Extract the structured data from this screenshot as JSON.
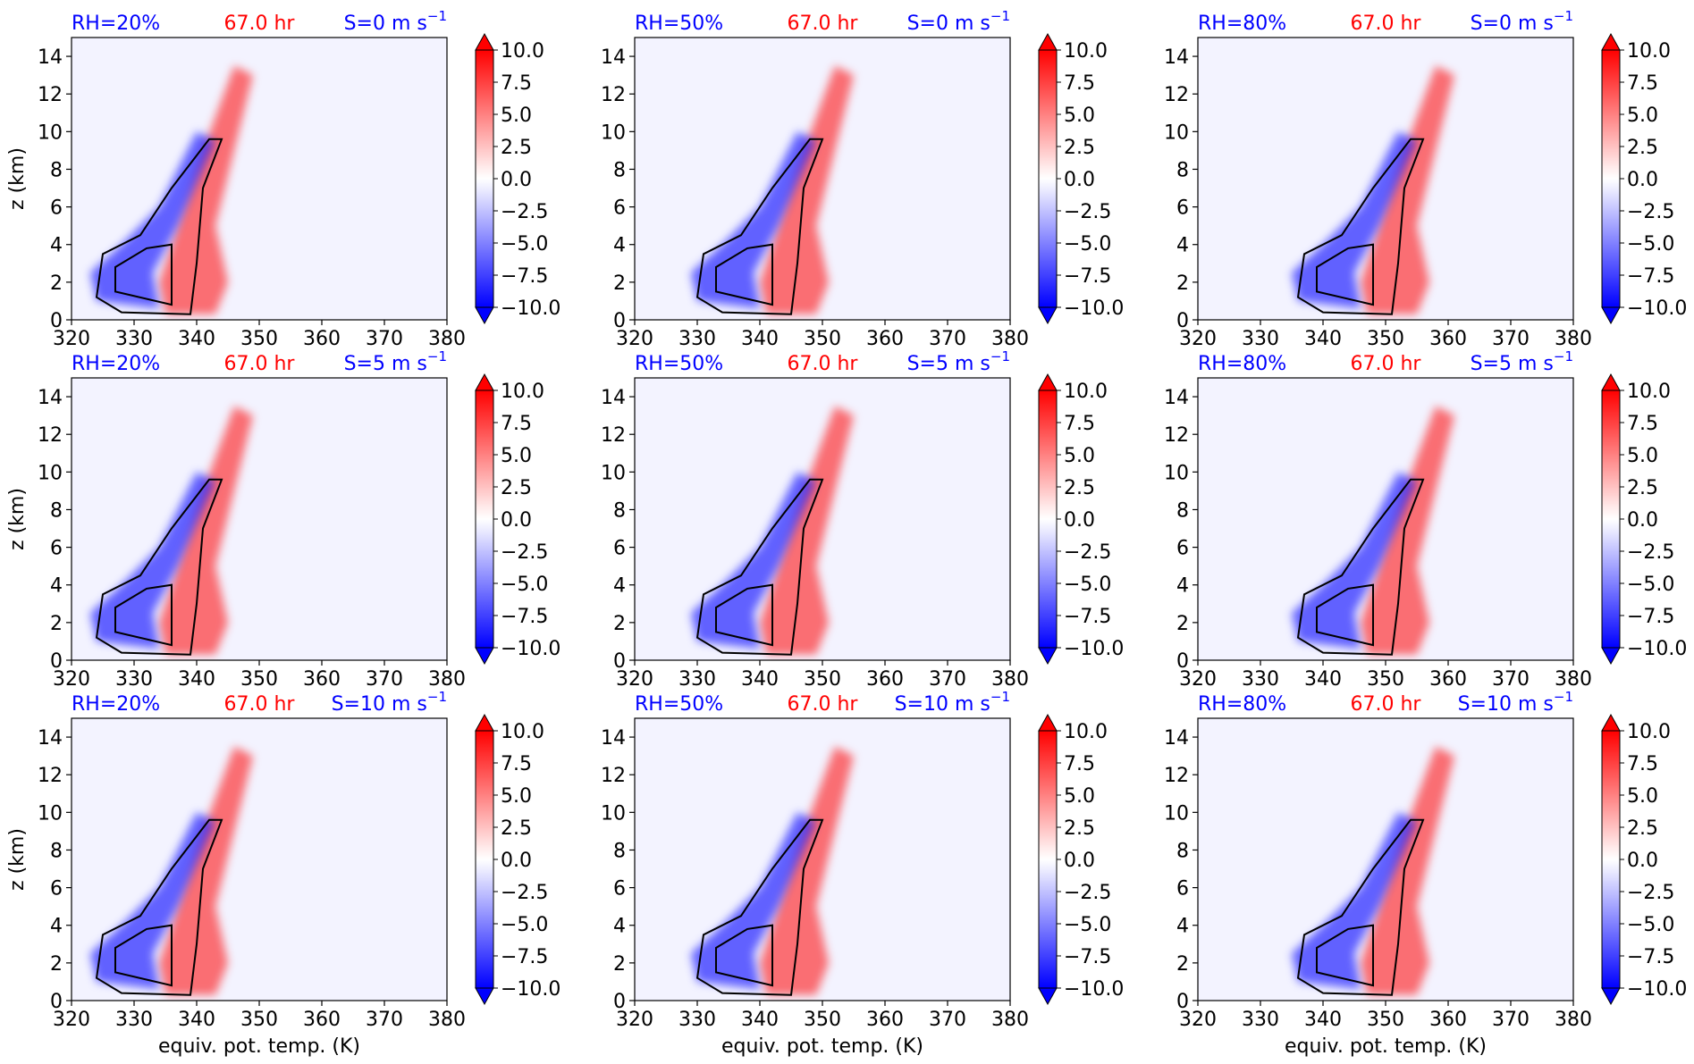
{
  "figure": {
    "panel_grid": "3 rows x 3 columns",
    "colors": {
      "rh_title": "#0000ff",
      "time_title": "#ff0000",
      "shear_title": "#0000ff",
      "contour": "#000000",
      "axes": "#000000",
      "colormap_low": "#0000ff",
      "colormap_mid": "#ffffff",
      "colormap_high": "#ff0000",
      "background_fill": "#f3f3ff"
    }
  },
  "chart_data": [
    {
      "type": "heatmap",
      "row": 0,
      "col": 0,
      "title_left": "RH=20%",
      "title_center": "67.0 hr",
      "title_right": "S=0 m s",
      "title_right_sup": "−1",
      "xlabel": "",
      "ylabel": "z (km)",
      "xlim": [
        320,
        380
      ],
      "ylim": [
        0,
        15
      ],
      "xticks": [
        "320",
        "330",
        "340",
        "350",
        "360",
        "370",
        "380"
      ],
      "yticks": [
        "0",
        "2",
        "4",
        "6",
        "8",
        "10",
        "12",
        "14"
      ],
      "colorbar": {
        "ticks": [
          "10.0",
          "7.5",
          "5.0",
          "2.5",
          "0.0",
          "−2.5",
          "−5.0",
          "−7.5",
          "−10.0"
        ],
        "range": [
          -10,
          10
        ],
        "extend": "both"
      }
    },
    {
      "type": "heatmap",
      "row": 0,
      "col": 1,
      "title_left": "RH=50%",
      "title_center": "67.0 hr",
      "title_right": "S=0 m s",
      "title_right_sup": "−1",
      "xlabel": "",
      "ylabel": "",
      "xlim": [
        320,
        380
      ],
      "ylim": [
        0,
        15
      ],
      "xticks": [
        "320",
        "330",
        "340",
        "350",
        "360",
        "370",
        "380"
      ],
      "yticks": [
        "0",
        "2",
        "4",
        "6",
        "8",
        "10",
        "12",
        "14"
      ],
      "colorbar": {
        "ticks": [
          "10.0",
          "7.5",
          "5.0",
          "2.5",
          "0.0",
          "−2.5",
          "−5.0",
          "−7.5",
          "−10.0"
        ],
        "range": [
          -10,
          10
        ],
        "extend": "both"
      }
    },
    {
      "type": "heatmap",
      "row": 0,
      "col": 2,
      "title_left": "RH=80%",
      "title_center": "67.0 hr",
      "title_right": "S=0 m s",
      "title_right_sup": "−1",
      "xlabel": "",
      "ylabel": "",
      "xlim": [
        320,
        380
      ],
      "ylim": [
        0,
        15
      ],
      "xticks": [
        "320",
        "330",
        "340",
        "350",
        "360",
        "370",
        "380"
      ],
      "yticks": [
        "0",
        "2",
        "4",
        "6",
        "8",
        "10",
        "12",
        "14"
      ],
      "colorbar": {
        "ticks": [
          "10.0",
          "7.5",
          "5.0",
          "2.5",
          "0.0",
          "−2.5",
          "−5.0",
          "−7.5",
          "−10.0"
        ],
        "range": [
          -10,
          10
        ],
        "extend": "both"
      }
    },
    {
      "type": "heatmap",
      "row": 1,
      "col": 0,
      "title_left": "RH=20%",
      "title_center": "67.0 hr",
      "title_right": "S=5 m s",
      "title_right_sup": "−1",
      "xlabel": "",
      "ylabel": "z (km)",
      "xlim": [
        320,
        380
      ],
      "ylim": [
        0,
        15
      ],
      "xticks": [
        "320",
        "330",
        "340",
        "350",
        "360",
        "370",
        "380"
      ],
      "yticks": [
        "0",
        "2",
        "4",
        "6",
        "8",
        "10",
        "12",
        "14"
      ],
      "colorbar": {
        "ticks": [
          "10.0",
          "7.5",
          "5.0",
          "2.5",
          "0.0",
          "−2.5",
          "−5.0",
          "−7.5",
          "−10.0"
        ],
        "range": [
          -10,
          10
        ],
        "extend": "both"
      }
    },
    {
      "type": "heatmap",
      "row": 1,
      "col": 1,
      "title_left": "RH=50%",
      "title_center": "67.0 hr",
      "title_right": "S=5 m s",
      "title_right_sup": "−1",
      "xlabel": "",
      "ylabel": "",
      "xlim": [
        320,
        380
      ],
      "ylim": [
        0,
        15
      ],
      "xticks": [
        "320",
        "330",
        "340",
        "350",
        "360",
        "370",
        "380"
      ],
      "yticks": [
        "0",
        "2",
        "4",
        "6",
        "8",
        "10",
        "12",
        "14"
      ],
      "colorbar": {
        "ticks": [
          "10.0",
          "7.5",
          "5.0",
          "2.5",
          "0.0",
          "−2.5",
          "−5.0",
          "−7.5",
          "−10.0"
        ],
        "range": [
          -10,
          10
        ],
        "extend": "both"
      }
    },
    {
      "type": "heatmap",
      "row": 1,
      "col": 2,
      "title_left": "RH=80%",
      "title_center": "67.0 hr",
      "title_right": "S=5 m s",
      "title_right_sup": "−1",
      "xlabel": "",
      "ylabel": "",
      "xlim": [
        320,
        380
      ],
      "ylim": [
        0,
        15
      ],
      "xticks": [
        "320",
        "330",
        "340",
        "350",
        "360",
        "370",
        "380"
      ],
      "yticks": [
        "0",
        "2",
        "4",
        "6",
        "8",
        "10",
        "12",
        "14"
      ],
      "colorbar": {
        "ticks": [
          "10.0",
          "7.5",
          "5.0",
          "2.5",
          "0.0",
          "−2.5",
          "−5.0",
          "−7.5",
          "−10.0"
        ],
        "range": [
          -10,
          10
        ],
        "extend": "both"
      }
    },
    {
      "type": "heatmap",
      "row": 2,
      "col": 0,
      "title_left": "RH=20%",
      "title_center": "67.0 hr",
      "title_right": "S=10 m s",
      "title_right_sup": "−1",
      "xlabel": "equiv. pot. temp. (K)",
      "ylabel": "z (km)",
      "xlim": [
        320,
        380
      ],
      "ylim": [
        0,
        15
      ],
      "xticks": [
        "320",
        "330",
        "340",
        "350",
        "360",
        "370",
        "380"
      ],
      "yticks": [
        "0",
        "2",
        "4",
        "6",
        "8",
        "10",
        "12",
        "14"
      ],
      "colorbar": {
        "ticks": [
          "10.0",
          "7.5",
          "5.0",
          "2.5",
          "0.0",
          "−2.5",
          "−5.0",
          "−7.5",
          "−10.0"
        ],
        "range": [
          -10,
          10
        ],
        "extend": "both"
      }
    },
    {
      "type": "heatmap",
      "row": 2,
      "col": 1,
      "title_left": "RH=50%",
      "title_center": "67.0 hr",
      "title_right": "S=10 m s",
      "title_right_sup": "−1",
      "xlabel": "equiv. pot. temp. (K)",
      "ylabel": "",
      "xlim": [
        320,
        380
      ],
      "ylim": [
        0,
        15
      ],
      "xticks": [
        "320",
        "330",
        "340",
        "350",
        "360",
        "370",
        "380"
      ],
      "yticks": [
        "0",
        "2",
        "4",
        "6",
        "8",
        "10",
        "12",
        "14"
      ],
      "colorbar": {
        "ticks": [
          "10.0",
          "7.5",
          "5.0",
          "2.5",
          "0.0",
          "−2.5",
          "−5.0",
          "−7.5",
          "−10.0"
        ],
        "range": [
          -10,
          10
        ],
        "extend": "both"
      }
    },
    {
      "type": "heatmap",
      "row": 2,
      "col": 2,
      "title_left": "RH=80%",
      "title_center": "67.0 hr",
      "title_right": "S=10 m s",
      "title_right_sup": "−1",
      "xlabel": "equiv. pot. temp. (K)",
      "ylabel": "",
      "xlim": [
        320,
        380
      ],
      "ylim": [
        0,
        15
      ],
      "xticks": [
        "320",
        "330",
        "340",
        "350",
        "360",
        "370",
        "380"
      ],
      "yticks": [
        "0",
        "2",
        "4",
        "6",
        "8",
        "10",
        "12",
        "14"
      ],
      "colorbar": {
        "ticks": [
          "10.0",
          "7.5",
          "5.0",
          "2.5",
          "0.0",
          "−2.5",
          "−5.0",
          "−7.5",
          "−10.0"
        ],
        "range": [
          -10,
          10
        ],
        "extend": "both"
      }
    }
  ]
}
